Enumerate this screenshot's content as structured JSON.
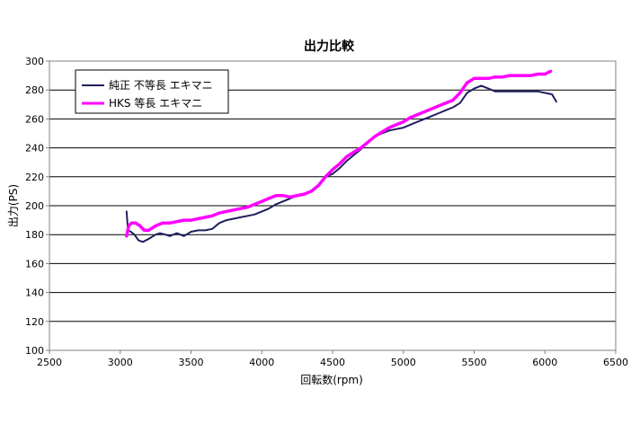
{
  "chart_data": {
    "type": "line",
    "title": "出力比較",
    "xlabel": "回転数(rpm)",
    "ylabel": "出力(PS)",
    "xlim": [
      2500,
      6500
    ],
    "ylim": [
      100,
      300
    ],
    "xticks": [
      2500,
      3000,
      3500,
      4000,
      4500,
      5000,
      5500,
      6000,
      6500
    ],
    "yticks": [
      100,
      120,
      140,
      160,
      180,
      200,
      220,
      240,
      260,
      280,
      300
    ],
    "grid": "horizontal",
    "legend_position": "top-left",
    "series": [
      {
        "name": "純正 不等長 エキマニ",
        "color": "#1f1f5e",
        "points": [
          [
            3045,
            196
          ],
          [
            3055,
            183
          ],
          [
            3075,
            182
          ],
          [
            3100,
            180
          ],
          [
            3130,
            176
          ],
          [
            3160,
            175
          ],
          [
            3200,
            177
          ],
          [
            3250,
            180
          ],
          [
            3280,
            181
          ],
          [
            3320,
            180
          ],
          [
            3350,
            179
          ],
          [
            3400,
            181
          ],
          [
            3450,
            179
          ],
          [
            3500,
            182
          ],
          [
            3550,
            183
          ],
          [
            3600,
            183
          ],
          [
            3650,
            184
          ],
          [
            3700,
            188
          ],
          [
            3750,
            190
          ],
          [
            3800,
            191
          ],
          [
            3850,
            192
          ],
          [
            3900,
            193
          ],
          [
            3950,
            194
          ],
          [
            4000,
            196
          ],
          [
            4050,
            198
          ],
          [
            4100,
            201
          ],
          [
            4150,
            203
          ],
          [
            4200,
            205
          ],
          [
            4250,
            207
          ],
          [
            4300,
            208
          ],
          [
            4350,
            210
          ],
          [
            4400,
            214
          ],
          [
            4450,
            220
          ],
          [
            4500,
            222
          ],
          [
            4550,
            226
          ],
          [
            4600,
            231
          ],
          [
            4650,
            235
          ],
          [
            4700,
            239
          ],
          [
            4750,
            244
          ],
          [
            4800,
            248
          ],
          [
            4850,
            250
          ],
          [
            4900,
            252
          ],
          [
            4950,
            253
          ],
          [
            5000,
            254
          ],
          [
            5050,
            256
          ],
          [
            5100,
            258
          ],
          [
            5150,
            260
          ],
          [
            5200,
            262
          ],
          [
            5250,
            264
          ],
          [
            5300,
            266
          ],
          [
            5350,
            268
          ],
          [
            5400,
            271
          ],
          [
            5450,
            278
          ],
          [
            5500,
            281
          ],
          [
            5550,
            283
          ],
          [
            5600,
            281
          ],
          [
            5650,
            279
          ],
          [
            5700,
            279
          ],
          [
            5750,
            279
          ],
          [
            5800,
            279
          ],
          [
            5850,
            279
          ],
          [
            5900,
            279
          ],
          [
            5950,
            279
          ],
          [
            6000,
            278
          ],
          [
            6050,
            277
          ],
          [
            6080,
            272
          ]
        ]
      },
      {
        "name": "HKS 等長 エキマニ",
        "color": "#ff00ff",
        "points": [
          [
            3045,
            179
          ],
          [
            3060,
            186
          ],
          [
            3080,
            188
          ],
          [
            3110,
            188
          ],
          [
            3140,
            186
          ],
          [
            3170,
            183
          ],
          [
            3200,
            183
          ],
          [
            3250,
            186
          ],
          [
            3300,
            188
          ],
          [
            3350,
            188
          ],
          [
            3400,
            189
          ],
          [
            3450,
            190
          ],
          [
            3500,
            190
          ],
          [
            3550,
            191
          ],
          [
            3600,
            192
          ],
          [
            3650,
            193
          ],
          [
            3700,
            195
          ],
          [
            3750,
            196
          ],
          [
            3800,
            197
          ],
          [
            3850,
            198
          ],
          [
            3900,
            199
          ],
          [
            3950,
            201
          ],
          [
            4000,
            203
          ],
          [
            4050,
            205
          ],
          [
            4100,
            207
          ],
          [
            4150,
            207
          ],
          [
            4200,
            206
          ],
          [
            4250,
            207
          ],
          [
            4300,
            208
          ],
          [
            4350,
            210
          ],
          [
            4400,
            214
          ],
          [
            4450,
            220
          ],
          [
            4500,
            225
          ],
          [
            4550,
            229
          ],
          [
            4600,
            234
          ],
          [
            4650,
            237
          ],
          [
            4700,
            240
          ],
          [
            4750,
            244
          ],
          [
            4800,
            248
          ],
          [
            4850,
            251
          ],
          [
            4900,
            254
          ],
          [
            4950,
            256
          ],
          [
            5000,
            258
          ],
          [
            5050,
            261
          ],
          [
            5100,
            263
          ],
          [
            5150,
            265
          ],
          [
            5200,
            267
          ],
          [
            5250,
            269
          ],
          [
            5300,
            271
          ],
          [
            5350,
            273
          ],
          [
            5400,
            278
          ],
          [
            5450,
            285
          ],
          [
            5500,
            288
          ],
          [
            5550,
            288
          ],
          [
            5600,
            288
          ],
          [
            5650,
            289
          ],
          [
            5700,
            289
          ],
          [
            5750,
            290
          ],
          [
            5800,
            290
          ],
          [
            5850,
            290
          ],
          [
            5900,
            290
          ],
          [
            5950,
            291
          ],
          [
            6000,
            291
          ],
          [
            6040,
            293
          ]
        ]
      }
    ]
  }
}
